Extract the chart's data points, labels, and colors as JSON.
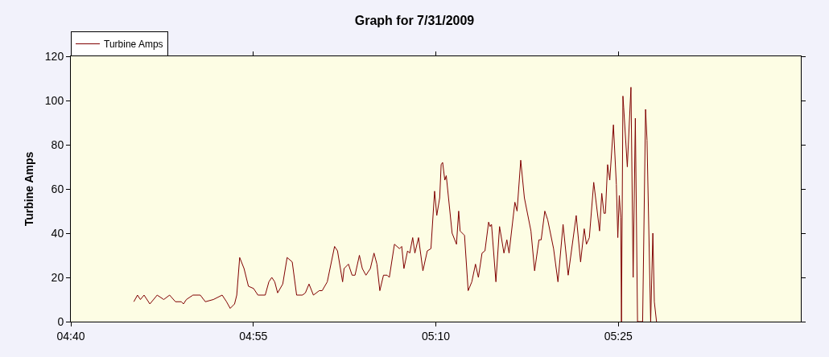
{
  "chart_data": {
    "type": "line",
    "title": "Graph for 7/31/2009",
    "ylabel": "Turbine Amps",
    "legend": "top left",
    "grid": false,
    "marker": "none",
    "line_style": "solid",
    "xlim": [
      4.6667,
      5.6667
    ],
    "xticks": [
      {
        "value": 4.6667,
        "label": "04:40"
      },
      {
        "value": 4.9167,
        "label": "04:55"
      },
      {
        "value": 5.1667,
        "label": "05:10"
      },
      {
        "value": 5.4167,
        "label": "05:25"
      }
    ],
    "ylim": [
      0,
      120
    ],
    "yticks": [
      0,
      20,
      40,
      60,
      80,
      100,
      120
    ],
    "x": [
      4.753,
      4.758,
      4.762,
      4.767,
      4.775,
      4.785,
      4.794,
      4.802,
      4.81,
      4.818,
      4.821,
      4.825,
      4.834,
      4.841,
      4.844,
      4.851,
      4.862,
      4.874,
      4.88,
      4.885,
      4.891,
      4.894,
      4.898,
      4.904,
      4.91,
      4.917,
      4.923,
      4.933,
      4.938,
      4.942,
      4.946,
      4.95,
      4.957,
      4.963,
      4.97,
      4.976,
      4.984,
      4.988,
      4.993,
      4.999,
      5.007,
      5.011,
      5.018,
      5.028,
      5.032,
      5.039,
      5.041,
      5.047,
      5.052,
      5.056,
      5.062,
      5.066,
      5.071,
      5.077,
      5.082,
      5.086,
      5.09,
      5.095,
      5.1,
      5.103,
      5.11,
      5.117,
      5.12,
      5.123,
      5.128,
      5.131,
      5.135,
      5.138,
      5.143,
      5.149,
      5.155,
      5.16,
      5.165,
      5.168,
      5.172,
      5.174,
      5.176,
      5.179,
      5.181,
      5.189,
      5.195,
      5.198,
      5.2,
      5.206,
      5.211,
      5.216,
      5.221,
      5.225,
      5.23,
      5.234,
      5.239,
      5.241,
      5.243,
      5.249,
      5.254,
      5.26,
      5.264,
      5.267,
      5.275,
      5.278,
      5.283,
      5.288,
      5.297,
      5.302,
      5.308,
      5.311,
      5.316,
      5.32,
      5.328,
      5.334,
      5.341,
      5.348,
      5.359,
      5.365,
      5.37,
      5.373,
      5.377,
      5.383,
      5.391,
      5.394,
      5.397,
      5.399,
      5.402,
      5.405,
      5.41,
      5.414,
      5.416,
      5.418,
      5.42,
      5.421,
      5.423,
      5.424,
      5.429,
      5.434,
      5.437,
      5.44,
      5.443,
      5.45,
      5.454,
      5.456,
      5.461,
      5.464,
      5.466,
      5.469
    ],
    "series": [
      {
        "name": "Turbine Amps",
        "color": "#800000",
        "values": [
          9,
          12,
          10,
          12,
          8,
          12,
          10,
          12,
          9,
          9,
          8,
          10,
          12,
          12,
          12,
          9,
          10,
          12,
          9,
          6,
          8,
          12,
          29,
          24,
          16,
          15,
          12,
          12,
          18,
          20,
          18,
          13,
          17,
          29,
          27,
          12,
          12,
          13,
          17,
          12,
          14,
          14,
          18,
          34,
          32,
          18,
          24,
          26,
          21,
          21,
          30,
          24,
          21,
          24,
          31,
          26,
          14,
          21,
          21,
          20,
          35,
          33,
          34,
          24,
          32,
          31,
          38,
          31,
          38,
          23,
          32,
          33,
          59,
          48,
          56,
          71,
          72,
          64,
          66,
          40,
          35,
          50,
          41,
          39,
          14,
          18,
          26,
          20,
          31,
          32,
          45,
          43,
          44,
          18,
          43,
          31,
          37,
          31,
          54,
          50,
          73,
          56,
          41,
          23,
          37,
          37,
          50,
          46,
          33,
          18,
          44,
          21,
          48,
          27,
          42,
          35,
          38,
          63,
          41,
          58,
          49,
          49,
          71,
          64,
          89,
          62,
          38,
          57,
          47,
          0,
          102,
          97,
          70,
          106,
          20,
          92,
          0,
          0,
          96,
          82,
          0,
          40,
          9,
          0
        ]
      }
    ]
  }
}
